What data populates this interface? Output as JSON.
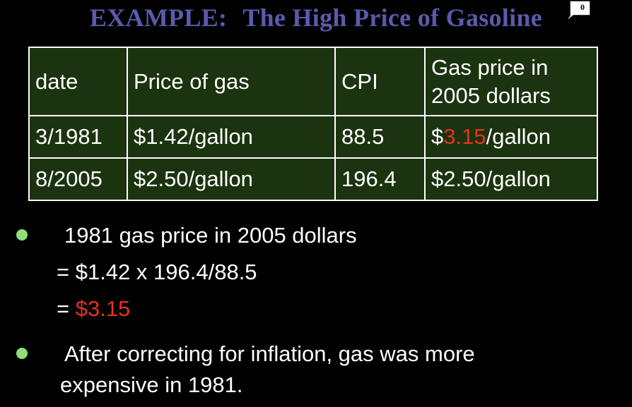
{
  "slide": {
    "title_prefix": "EXAMPLE:",
    "title_main": "The High Price of Gasoline",
    "comment_count": "0",
    "colors": {
      "title": "#5a5aad",
      "table_bg": "#1b330f",
      "highlight": "#e8321e",
      "bullet": "#8ee07a"
    }
  },
  "table": {
    "headers": {
      "date": "date",
      "price": "Price of gas",
      "cpi": "CPI",
      "adjusted_line1": "Gas price in",
      "adjusted_line2": "2005 dollars"
    },
    "rows": [
      {
        "date": "3/1981",
        "price": "$1.42/gallon",
        "cpi": "88.5",
        "adjusted_prefix": "$",
        "adjusted_value": "3.15",
        "adjusted_suffix": "/gallon"
      },
      {
        "date": "8/2005",
        "price": "$2.50/gallon",
        "cpi": "196.4",
        "adjusted": "$2.50/gallon"
      }
    ]
  },
  "bullets": {
    "first": {
      "line1": "1981 gas price in 2005 dollars",
      "line2": "= $1.42 x 196.4/88.5",
      "line3_prefix": "= ",
      "line3_value": "$3.15"
    },
    "second": {
      "line1": "After correcting for inflation, gas was more",
      "line2": "expensive in 1981."
    }
  }
}
